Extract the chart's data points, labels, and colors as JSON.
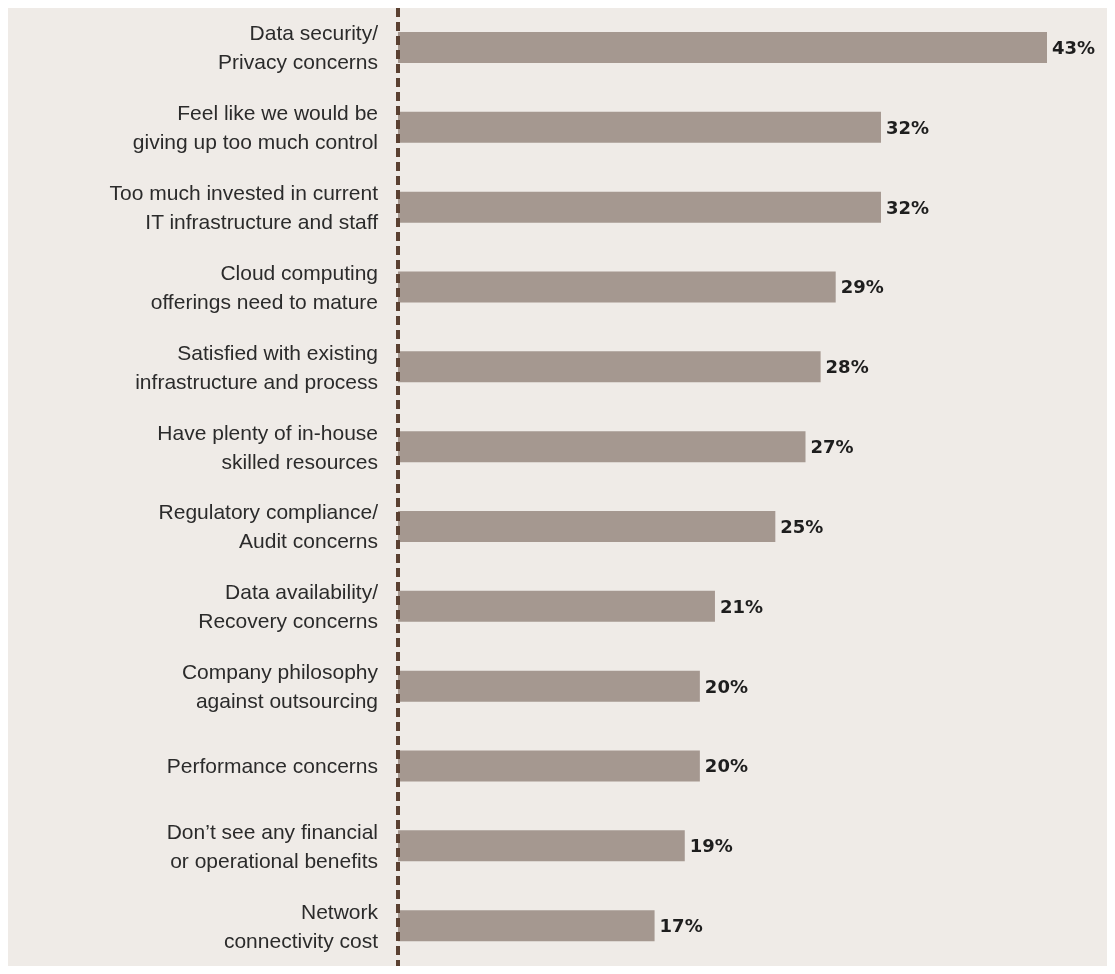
{
  "chart_data": {
    "type": "bar",
    "orientation": "horizontal",
    "categories": [
      "Data security/\nPrivacy concerns",
      "Feel like we would be\ngiving up too much control",
      "Too much invested in current\nIT infrastructure and staff",
      "Cloud computing\nofferings need to mature",
      "Satisfied with existing\ninfrastructure and process",
      "Have plenty of in-house\nskilled resources",
      "Regulatory compliance/\nAudit concerns",
      "Data availability/\nRecovery concerns",
      "Company philosophy\nagainst outsourcing",
      "Performance concerns",
      "Don’t see any financial\nor operational benefits",
      "Network\nconnectivity cost"
    ],
    "values": [
      43,
      32,
      32,
      29,
      28,
      27,
      25,
      21,
      20,
      20,
      19,
      17
    ],
    "value_labels": [
      "43%",
      "32%",
      "32%",
      "29%",
      "28%",
      "27%",
      "25%",
      "21%",
      "20%",
      "20%",
      "19%",
      "17%"
    ],
    "color": "#a59890"
  }
}
